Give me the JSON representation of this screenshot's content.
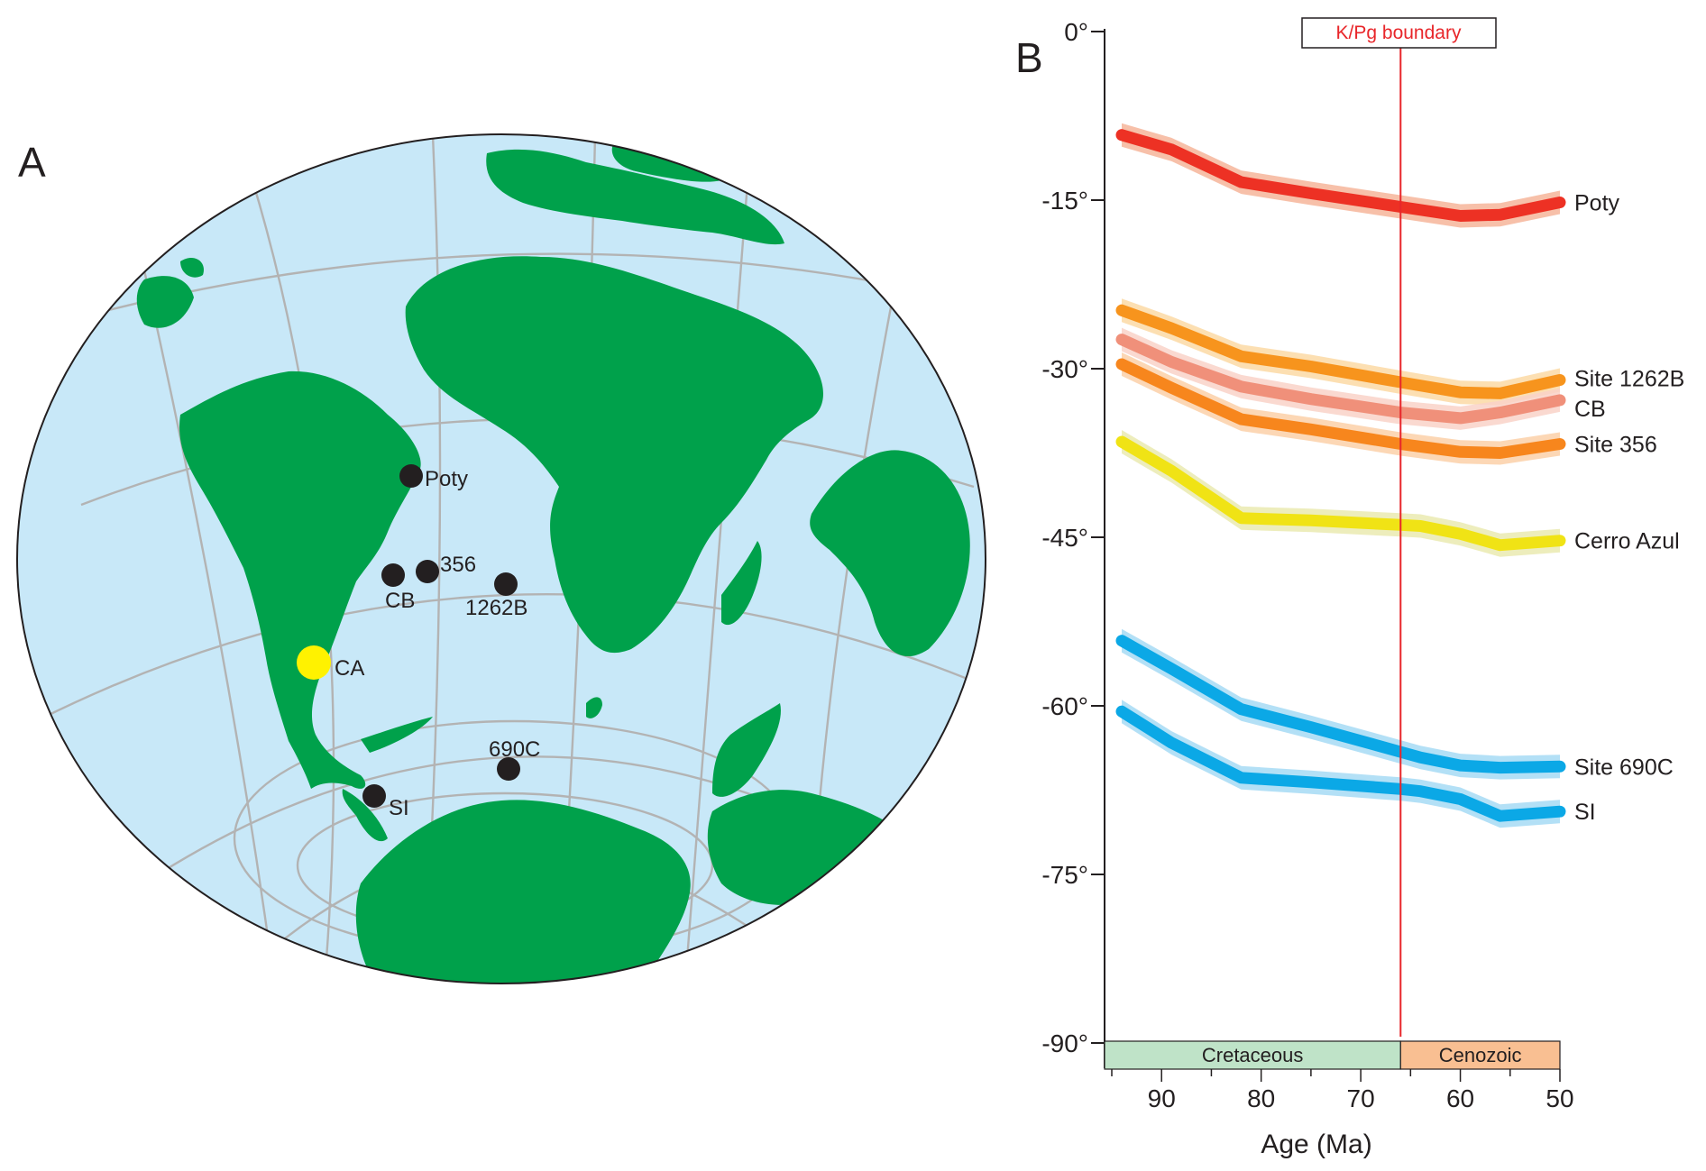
{
  "panel_a": {
    "letter": "A",
    "sites": [
      {
        "id": "poty",
        "label": "Poty",
        "color": "#231f20"
      },
      {
        "id": "s356",
        "label": "356",
        "color": "#231f20"
      },
      {
        "id": "cb",
        "label": "CB",
        "color": "#231f20"
      },
      {
        "id": "s1262b",
        "label": "1262B",
        "color": "#231f20"
      },
      {
        "id": "ca",
        "label": "CA",
        "color": "#fff200"
      },
      {
        "id": "s690c",
        "label": "690C",
        "color": "#231f20"
      },
      {
        "id": "si",
        "label": "SI",
        "color": "#231f20"
      }
    ],
    "colors": {
      "ocean": "#c8e8f8",
      "land": "#00a14b",
      "graticule": "#b3b3b3",
      "outline": "#231f20"
    }
  },
  "chart_data": {
    "type": "line",
    "panel_letter": "B",
    "xlabel": "Age (Ma)",
    "ylabel": "",
    "xlim": [
      95,
      50
    ],
    "ylim": [
      -90,
      0
    ],
    "x_ticks": [
      90,
      80,
      70,
      60,
      50
    ],
    "y_ticks": [
      {
        "value": 0,
        "label": "0°"
      },
      {
        "value": -15,
        "label": "-15°"
      },
      {
        "value": -30,
        "label": "-30°"
      },
      {
        "value": -45,
        "label": "-45°"
      },
      {
        "value": -60,
        "label": "-60°"
      },
      {
        "value": -75,
        "label": "-75°"
      },
      {
        "value": -90,
        "label": "-90°"
      }
    ],
    "boundary": {
      "label": "K/Pg boundary",
      "age": 66,
      "color": "#e8262a"
    },
    "periods": [
      {
        "label": "Cretaceous",
        "from": 95,
        "to": 66,
        "color": "#bfe3c8"
      },
      {
        "label": "Cenozoic",
        "from": 66,
        "to": 50,
        "color": "#f9bf92"
      }
    ],
    "series": [
      {
        "name": "Poty",
        "color": "#ed3124",
        "band": "#f6b59a",
        "x": [
          94,
          89,
          82,
          75,
          66,
          60,
          56,
          50
        ],
        "y": [
          -9.2,
          -10.5,
          -13.4,
          -14.4,
          -15.6,
          -16.4,
          -16.3,
          -15.2
        ]
      },
      {
        "name": "Site 1262B",
        "color": "#f7941d",
        "band": "#fcd9a5",
        "x": [
          94,
          89,
          82,
          75,
          66,
          60,
          56,
          50
        ],
        "y": [
          -24.8,
          -26.4,
          -28.9,
          -29.8,
          -31.2,
          -32.1,
          -32.2,
          -31.0
        ]
      },
      {
        "name": "CB",
        "color": "#f0907a",
        "band": "#f9d2c8",
        "x": [
          94,
          89,
          82,
          75,
          66,
          60,
          56,
          50
        ],
        "y": [
          -27.4,
          -29.4,
          -31.6,
          -32.7,
          -33.9,
          -34.4,
          -33.9,
          -32.8
        ]
      },
      {
        "name": "Site 356",
        "color": "#f7861d",
        "band": "#fbd0a8",
        "x": [
          94,
          89,
          82,
          75,
          66,
          60,
          56,
          50
        ],
        "y": [
          -29.6,
          -31.7,
          -34.5,
          -35.4,
          -36.7,
          -37.4,
          -37.5,
          -36.7
        ]
      },
      {
        "name": "Cerro Azul",
        "color": "#f0e315",
        "band": "#eaeab0",
        "x": [
          94,
          89,
          82,
          75,
          66,
          64,
          60,
          56,
          50
        ],
        "y": [
          -36.5,
          -39.1,
          -43.3,
          -43.5,
          -43.9,
          -44.0,
          -44.7,
          -45.7,
          -45.3
        ]
      },
      {
        "name": "Site 690C",
        "color": "#0ba8e6",
        "band": "#a6dbf5",
        "x": [
          94,
          89,
          82,
          75,
          66,
          64,
          60,
          56,
          50
        ],
        "y": [
          -54.2,
          -56.7,
          -60.3,
          -61.9,
          -64.1,
          -64.6,
          -65.3,
          -65.5,
          -65.4
        ]
      },
      {
        "name": "SI",
        "color": "#0ba8e6",
        "band": "#a6dbf5",
        "x": [
          94,
          89,
          82,
          75,
          66,
          64,
          60,
          56,
          50
        ],
        "y": [
          -60.5,
          -63.3,
          -66.4,
          -66.8,
          -67.4,
          -67.6,
          -68.3,
          -69.8,
          -69.4
        ]
      }
    ]
  }
}
